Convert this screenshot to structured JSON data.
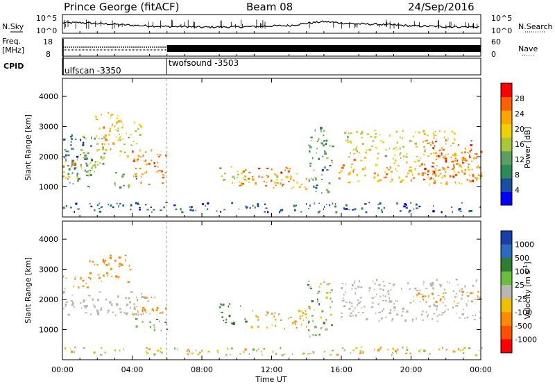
{
  "header": {
    "station": "Prince George (fitACF)",
    "beam": "Beam 08",
    "date": "24/Sep/2016"
  },
  "noise_panel": {
    "left_label": "N.Sky",
    "right_label": "N.Search",
    "left_ticks": [
      "10^5",
      "10^0"
    ],
    "right_ticks": [
      "10^5",
      "10^0"
    ]
  },
  "freq_panel": {
    "left_label_1": "Freq.",
    "left_label_2": "[MHz]",
    "left_ticks": [
      "18",
      "8"
    ],
    "right_label": "Nave",
    "right_ticks": [
      "60",
      "0"
    ]
  },
  "cpid_panel": {
    "label": "CPID",
    "modes": [
      {
        "name": "ulfscan -3350",
        "start_hour": 0,
        "end_hour": 6
      },
      {
        "name": "twofsound -3503",
        "start_hour": 6,
        "end_hour": 24
      }
    ]
  },
  "colors": {
    "power_scale": [
      "#0000ff",
      "#1a4fa0",
      "#2e8b57",
      "#5aa060",
      "#a8c838",
      "#f0d000",
      "#ffa500",
      "#ff6000",
      "#ff0000"
    ],
    "velocity_scale": [
      "#1a3fa8",
      "#2a6abf",
      "#2e7d32",
      "#6abf3a",
      "#b8b8b0",
      "#f0c000",
      "#ff8c00",
      "#ff5000",
      "#ff0000"
    ]
  },
  "chart_data": [
    {
      "type": "heatmap",
      "title": "",
      "quantity": "Power",
      "xlabel": "",
      "ylabel": "Slant Range [km]",
      "xlim": [
        0,
        24
      ],
      "ylim": [
        0,
        4600
      ],
      "yticks": [
        "1000",
        "2000",
        "3000",
        "4000"
      ],
      "colorbar": {
        "label": "Power [dB]",
        "ticks": [
          "4",
          "8",
          "12",
          "16",
          "20",
          "24",
          "28"
        ],
        "range": [
          0,
          30
        ]
      },
      "regions": [
        {
          "t0": 0.0,
          "t1": 1.7,
          "r0": 1000,
          "r1": 2800,
          "value": 7
        },
        {
          "t0": 0.0,
          "t1": 1.2,
          "r0": 1300,
          "r1": 2000,
          "value": 22
        },
        {
          "t0": 1.8,
          "t1": 3.2,
          "r0": 2200,
          "r1": 3500,
          "value": 21
        },
        {
          "t0": 1.0,
          "t1": 2.5,
          "r0": 1400,
          "r1": 2800,
          "value": 14
        },
        {
          "t0": 3.0,
          "t1": 4.5,
          "r0": 2000,
          "r1": 3400,
          "value": 16
        },
        {
          "t0": 4.0,
          "t1": 5.9,
          "r0": 1100,
          "r1": 2300,
          "value": 24
        },
        {
          "t0": 2.8,
          "t1": 4.2,
          "r0": 1000,
          "r1": 1500,
          "value": 12
        },
        {
          "t0": 9.0,
          "t1": 11.0,
          "r0": 1100,
          "r1": 1700,
          "value": 17
        },
        {
          "t0": 10.0,
          "t1": 13.0,
          "r0": 1050,
          "r1": 1700,
          "value": 24
        },
        {
          "t0": 12.0,
          "t1": 14.2,
          "r0": 900,
          "r1": 1500,
          "value": 20
        },
        {
          "t0": 14.0,
          "t1": 15.5,
          "r0": 800,
          "r1": 3000,
          "value": 10
        },
        {
          "t0": 15.8,
          "t1": 24.0,
          "r0": 1100,
          "r1": 2000,
          "value": 21
        },
        {
          "t0": 16.0,
          "t1": 22.5,
          "r0": 2000,
          "r1": 2900,
          "value": 17
        },
        {
          "t0": 20.5,
          "t1": 24.0,
          "r0": 1200,
          "r1": 2600,
          "value": 25
        },
        {
          "t0": 0.0,
          "t1": 24.0,
          "r0": 180,
          "r1": 500,
          "value": 6
        }
      ]
    },
    {
      "type": "heatmap",
      "title": "",
      "quantity": "Velocity",
      "xlabel": "Time UT",
      "ylabel": "Slant Range [km]",
      "xlim": [
        0,
        24
      ],
      "ylim": [
        0,
        4600
      ],
      "xticks": [
        "00:00",
        "04:00",
        "08:00",
        "12:00",
        "16:00",
        "20:00",
        "00:00"
      ],
      "yticks": [
        "1000",
        "2000",
        "3000",
        "4000"
      ],
      "colorbar": {
        "label": "Velocity [m s-1]",
        "ticks": [
          "1000",
          "500",
          "100",
          "25",
          "-25",
          "-100",
          "-500",
          "-1000"
        ]
      },
      "regions": [
        {
          "t0": 0.0,
          "t1": 5.0,
          "r0": 1500,
          "r1": 2300,
          "value": 0
        },
        {
          "t0": 0.0,
          "t1": 1.5,
          "r0": 2300,
          "r1": 2800,
          "value": -300
        },
        {
          "t0": 1.5,
          "t1": 4.0,
          "r0": 2600,
          "r1": 3500,
          "value": -400
        },
        {
          "t0": 4.0,
          "t1": 6.0,
          "r0": 1500,
          "r1": 2100,
          "value": -300
        },
        {
          "t0": 4.0,
          "t1": 6.0,
          "r0": 1000,
          "r1": 1400,
          "value": 80
        },
        {
          "t0": 9.0,
          "t1": 10.5,
          "r0": 1200,
          "r1": 1900,
          "value": 200
        },
        {
          "t0": 10.5,
          "t1": 14.0,
          "r0": 1050,
          "r1": 1700,
          "value": -60
        },
        {
          "t0": 14.0,
          "t1": 15.5,
          "r0": 800,
          "r1": 2700,
          "value": 40
        },
        {
          "t0": 15.8,
          "t1": 24.0,
          "r0": 1300,
          "r1": 2700,
          "value": 0
        },
        {
          "t0": 20.0,
          "t1": 24.0,
          "r0": 1900,
          "r1": 2300,
          "value": -150
        },
        {
          "t0": 0.0,
          "t1": 24.0,
          "r0": 180,
          "r1": 450,
          "value": -60
        }
      ]
    }
  ],
  "noise_series": [
    {
      "name": "N.Sky",
      "x": [
        0,
        1,
        2,
        3,
        4,
        5,
        6,
        7,
        8,
        9,
        10,
        11,
        12,
        13,
        14,
        15,
        16,
        17,
        18,
        19,
        20,
        21,
        22,
        23,
        24
      ],
      "log10": [
        2.9,
        3.0,
        2.7,
        2.5,
        2.2,
        2.0,
        1.8,
        1.8,
        1.6,
        1.7,
        1.7,
        1.8,
        2.0,
        2.1,
        2.8,
        3.3,
        2.9,
        2.6,
        2.5,
        2.3,
        2.0,
        1.9,
        1.8,
        1.7,
        1.7
      ]
    }
  ]
}
